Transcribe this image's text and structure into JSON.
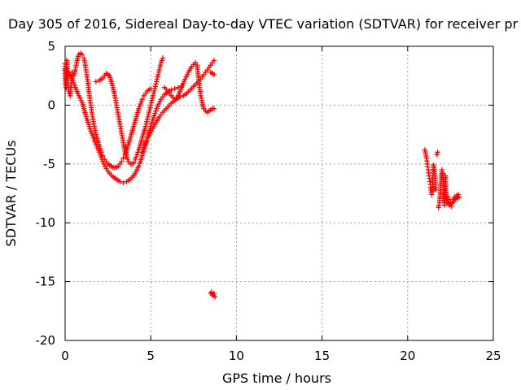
{
  "chart_data": {
    "type": "scatter",
    "title": "Day 305 of 2016, Sidereal Day-to-day VTEC variation (SDTVAR) for receiver pr",
    "xlabel": "GPS time / hours",
    "ylabel": "SDTVAR / TECUs",
    "xlim": [
      0,
      25
    ],
    "ylim": [
      -20,
      5
    ],
    "xticks": [
      "0",
      "5",
      "10",
      "15",
      "20",
      "25"
    ],
    "yticks": [
      "5",
      "0",
      "-5",
      "-10",
      "-15",
      "-20"
    ],
    "grid": true,
    "marker": "plus",
    "color": "#ff0000",
    "series": [
      {
        "points": [
          [
            0.0,
            3.5
          ],
          [
            0.0,
            2.5
          ],
          [
            0.05,
            1.5
          ],
          [
            0.1,
            3.8
          ],
          [
            0.2,
            1.2
          ],
          [
            0.3,
            0.8
          ],
          [
            0.4,
            2.8
          ],
          [
            0.5,
            2.5
          ],
          [
            0.6,
            3.0
          ],
          [
            0.7,
            3.8
          ],
          [
            0.8,
            4.3
          ],
          [
            0.9,
            4.4
          ],
          [
            1.0,
            4.3
          ],
          [
            1.1,
            4.0
          ],
          [
            1.2,
            3.2
          ],
          [
            1.3,
            2.2
          ],
          [
            1.4,
            1.0
          ],
          [
            1.5,
            0.0
          ],
          [
            1.6,
            -1.0
          ],
          [
            1.7,
            -1.8
          ],
          [
            1.8,
            -2.5
          ],
          [
            1.9,
            -3.0
          ],
          [
            2.0,
            -3.5
          ],
          [
            2.1,
            -4.0
          ],
          [
            2.2,
            -4.3
          ],
          [
            2.3,
            -4.6
          ],
          [
            2.4,
            -4.8
          ],
          [
            2.5,
            -5.0
          ],
          [
            2.6,
            -5.1
          ],
          [
            2.7,
            -5.2
          ],
          [
            2.8,
            -5.3
          ],
          [
            2.9,
            -5.3
          ],
          [
            3.0,
            -5.3
          ],
          [
            3.1,
            -5.2
          ],
          [
            3.2,
            -5.0
          ],
          [
            3.3,
            -4.8
          ],
          [
            3.4,
            -4.5
          ],
          [
            3.5,
            -4.2
          ],
          [
            3.6,
            -3.8
          ],
          [
            3.7,
            -3.3
          ],
          [
            3.8,
            -2.8
          ],
          [
            3.9,
            -2.3
          ],
          [
            4.0,
            -1.8
          ],
          [
            4.1,
            -1.3
          ],
          [
            4.2,
            -0.8
          ],
          [
            4.3,
            -0.3
          ],
          [
            4.4,
            0.1
          ],
          [
            4.5,
            0.5
          ],
          [
            4.6,
            0.8
          ],
          [
            4.7,
            1.0
          ],
          [
            4.8,
            1.2
          ],
          [
            4.9,
            1.3
          ],
          [
            5.0,
            1.4
          ]
        ]
      },
      {
        "points": [
          [
            0.0,
            3.0
          ],
          [
            0.2,
            2.8
          ],
          [
            0.4,
            2.3
          ],
          [
            0.6,
            1.5
          ],
          [
            0.8,
            0.8
          ],
          [
            1.0,
            0.2
          ],
          [
            1.2,
            -0.8
          ],
          [
            1.4,
            -1.8
          ],
          [
            1.6,
            -2.6
          ],
          [
            1.8,
            -3.3
          ],
          [
            2.0,
            -4.0
          ],
          [
            2.2,
            -4.8
          ],
          [
            2.4,
            -5.4
          ],
          [
            2.6,
            -5.8
          ],
          [
            2.8,
            -6.1
          ],
          [
            3.0,
            -6.3
          ],
          [
            3.2,
            -6.5
          ],
          [
            3.4,
            -6.6
          ],
          [
            3.6,
            -6.5
          ],
          [
            3.8,
            -6.3
          ],
          [
            4.0,
            -6.0
          ],
          [
            4.2,
            -5.5
          ],
          [
            4.4,
            -4.8
          ],
          [
            4.6,
            -3.8
          ],
          [
            4.8,
            -2.8
          ],
          [
            5.0,
            -1.8
          ],
          [
            5.2,
            -0.9
          ],
          [
            5.4,
            -0.1
          ],
          [
            5.6,
            0.5
          ],
          [
            5.8,
            0.9
          ],
          [
            6.0,
            1.1
          ],
          [
            6.2,
            1.3
          ],
          [
            6.4,
            1.4
          ],
          [
            6.6,
            1.5
          ],
          [
            6.8,
            1.6
          ]
        ]
      },
      {
        "points": [
          [
            1.8,
            2.0
          ],
          [
            2.0,
            2.1
          ],
          [
            2.2,
            2.3
          ],
          [
            2.4,
            2.7
          ],
          [
            2.6,
            2.5
          ],
          [
            2.7,
            2.0
          ],
          [
            2.8,
            1.5
          ],
          [
            2.9,
            0.8
          ],
          [
            3.0,
            0.0
          ],
          [
            3.1,
            -0.8
          ],
          [
            3.2,
            -1.6
          ],
          [
            3.3,
            -2.4
          ],
          [
            3.4,
            -3.2
          ],
          [
            3.5,
            -3.9
          ],
          [
            3.6,
            -4.4
          ],
          [
            3.7,
            -4.8
          ],
          [
            3.8,
            -5.0
          ],
          [
            3.9,
            -5.0
          ],
          [
            4.0,
            -4.9
          ],
          [
            4.1,
            -4.6
          ],
          [
            4.2,
            -4.2
          ],
          [
            4.3,
            -3.8
          ],
          [
            4.4,
            -3.3
          ],
          [
            4.5,
            -2.8
          ],
          [
            4.6,
            -2.3
          ],
          [
            4.7,
            -1.8
          ],
          [
            4.8,
            -1.2
          ],
          [
            4.9,
            -0.6
          ],
          [
            5.0,
            0.0
          ],
          [
            5.1,
            0.6
          ],
          [
            5.2,
            1.2
          ],
          [
            5.3,
            1.8
          ],
          [
            5.4,
            2.4
          ],
          [
            5.5,
            3.0
          ],
          [
            5.6,
            3.6
          ],
          [
            5.7,
            4.0
          ]
        ]
      },
      {
        "points": [
          [
            4.5,
            -4.0
          ],
          [
            4.7,
            -3.2
          ],
          [
            4.9,
            -2.6
          ],
          [
            5.1,
            -2.0
          ],
          [
            5.3,
            -1.5
          ],
          [
            5.5,
            -1.0
          ],
          [
            5.7,
            -0.6
          ],
          [
            5.9,
            -0.3
          ],
          [
            6.1,
            0.0
          ],
          [
            6.3,
            0.3
          ],
          [
            6.5,
            0.5
          ],
          [
            6.7,
            0.7
          ],
          [
            6.9,
            0.8
          ],
          [
            7.1,
            1.0
          ],
          [
            7.3,
            1.3
          ],
          [
            7.5,
            1.6
          ],
          [
            7.7,
            1.9
          ],
          [
            7.9,
            2.2
          ],
          [
            8.1,
            2.6
          ],
          [
            8.3,
            3.0
          ],
          [
            8.5,
            3.4
          ],
          [
            8.7,
            3.8
          ]
        ]
      },
      {
        "points": [
          [
            5.8,
            1.5
          ],
          [
            6.0,
            1.2
          ],
          [
            6.2,
            0.8
          ],
          [
            6.4,
            0.5
          ],
          [
            6.6,
            0.8
          ],
          [
            6.8,
            1.5
          ],
          [
            7.0,
            2.2
          ],
          [
            7.2,
            2.8
          ],
          [
            7.4,
            3.3
          ],
          [
            7.6,
            3.6
          ],
          [
            7.7,
            3.4
          ],
          [
            7.8,
            2.2
          ],
          [
            7.9,
            1.0
          ],
          [
            8.0,
            0.2
          ],
          [
            8.1,
            -0.3
          ],
          [
            8.2,
            -0.5
          ],
          [
            8.3,
            -0.6
          ],
          [
            8.4,
            -0.5
          ],
          [
            8.5,
            -0.4
          ],
          [
            8.6,
            -0.3
          ],
          [
            8.7,
            -0.3
          ]
        ]
      },
      {
        "points": [
          [
            8.5,
            2.8
          ],
          [
            8.7,
            2.6
          ],
          [
            8.5,
            -16.0
          ],
          [
            8.55,
            -15.9
          ],
          [
            8.6,
            -16.1
          ],
          [
            8.65,
            -16.2
          ],
          [
            8.7,
            -16.0
          ],
          [
            8.75,
            -16.3
          ]
        ]
      },
      {
        "points": [
          [
            21.0,
            -3.8
          ],
          [
            21.1,
            -4.5
          ],
          [
            21.15,
            -5.0
          ],
          [
            21.2,
            -5.5
          ],
          [
            21.25,
            -6.0
          ],
          [
            21.3,
            -6.5
          ],
          [
            21.35,
            -7.0
          ],
          [
            21.4,
            -7.6
          ],
          [
            21.45,
            -7.3
          ],
          [
            21.5,
            -5.1
          ],
          [
            21.55,
            -5.3
          ],
          [
            21.6,
            -6.2
          ],
          [
            21.65,
            -7.2
          ],
          [
            21.7,
            -4.2
          ],
          [
            21.75,
            -4.0
          ],
          [
            21.8,
            -8.7
          ],
          [
            21.85,
            -8.3
          ],
          [
            21.9,
            -7.4
          ],
          [
            22.0,
            -5.5
          ],
          [
            22.05,
            -5.8
          ],
          [
            22.1,
            -7.9
          ],
          [
            22.15,
            -8.5
          ],
          [
            22.2,
            -6.0
          ],
          [
            22.25,
            -8.1
          ],
          [
            22.3,
            -8.3
          ],
          [
            22.35,
            -7.8
          ],
          [
            22.4,
            -8.4
          ],
          [
            22.45,
            -8.5
          ],
          [
            22.5,
            -8.2
          ],
          [
            22.55,
            -8.6
          ],
          [
            22.6,
            -8.3
          ],
          [
            22.65,
            -8.0
          ],
          [
            22.7,
            -8.2
          ],
          [
            22.75,
            -7.8
          ],
          [
            22.8,
            -8.0
          ],
          [
            22.85,
            -7.7
          ],
          [
            22.9,
            -7.9
          ],
          [
            22.95,
            -7.6
          ],
          [
            23.0,
            -7.8
          ]
        ]
      }
    ]
  }
}
